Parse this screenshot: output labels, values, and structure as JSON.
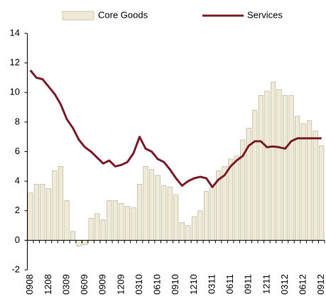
{
  "chart_data": {
    "type": "bar_line",
    "categories": [
      "0908",
      null,
      null,
      "1208",
      null,
      null,
      "0309",
      null,
      null,
      "0609",
      null,
      null,
      "0909",
      null,
      null,
      "1209",
      null,
      null,
      "0310",
      null,
      null,
      "0610",
      null,
      null,
      "0910",
      null,
      null,
      "1210",
      null,
      null,
      "0311",
      null,
      null,
      "0611",
      null,
      null,
      "0911",
      null,
      null,
      "1211",
      null,
      null,
      "0312",
      null,
      null,
      "0612",
      null,
      null,
      "0912"
    ],
    "series": [
      {
        "name": "Core Goods",
        "type": "bar",
        "color": "#eeead5",
        "values": [
          3.2,
          3.8,
          3.8,
          3.5,
          4.7,
          5.0,
          2.7,
          0.6,
          -0.4,
          -0.3,
          1.5,
          1.8,
          1.4,
          2.7,
          2.7,
          2.5,
          2.3,
          2.2,
          3.8,
          5.0,
          4.8,
          4.4,
          3.7,
          3.6,
          3.1,
          1.2,
          1.0,
          1.6,
          2.0,
          3.3,
          3.6,
          4.7,
          5.0,
          5.5,
          5.7,
          6.8,
          7.6,
          8.8,
          9.8,
          10.1,
          10.7,
          10.2,
          9.8,
          9.8,
          8.4,
          7.9,
          8.1,
          7.4,
          6.4
        ]
      },
      {
        "name": "Services",
        "type": "line",
        "color": "#7b1c2a",
        "values": [
          11.5,
          11.0,
          10.9,
          10.4,
          9.9,
          9.2,
          8.2,
          7.6,
          6.8,
          6.3,
          6.0,
          5.6,
          5.2,
          5.4,
          5.0,
          5.1,
          5.3,
          5.9,
          7.0,
          6.2,
          6.0,
          5.5,
          5.3,
          4.8,
          4.2,
          3.7,
          4.0,
          4.2,
          4.3,
          4.2,
          3.6,
          4.1,
          4.4,
          5.0,
          5.4,
          5.7,
          6.4,
          6.7,
          6.7,
          6.3,
          6.35,
          6.3,
          6.2,
          6.7,
          6.9,
          6.9,
          6.9,
          6.9,
          6.9
        ]
      }
    ],
    "ylim": [
      -2,
      14
    ],
    "yticks": [
      -2,
      0,
      2,
      4,
      6,
      8,
      10,
      12,
      14
    ],
    "legend": "top",
    "grid": false
  }
}
